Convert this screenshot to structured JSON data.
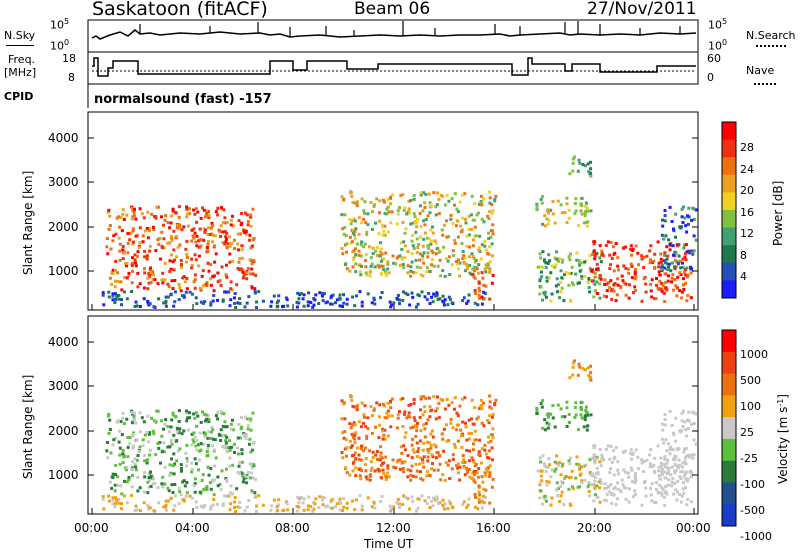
{
  "header": {
    "station": "Saskatoon (fitACF)",
    "beam": "Beam 06",
    "date": "27/Nov/2011"
  },
  "nsky_panel": {
    "left_label": "N.Sky",
    "left_ticks": [
      "10^5",
      "10^0"
    ],
    "right_ticks": [
      "10^5",
      "10^0"
    ],
    "right_label": "N.Search"
  },
  "freq_panel": {
    "left_label_top": "Freq.",
    "left_label_bottom": "[MHz]",
    "left_ticks": [
      "18",
      "8"
    ],
    "right_ticks": [
      "60",
      "0"
    ],
    "right_label": "Nave"
  },
  "cpid_panel": {
    "label": "CPID",
    "value": "normalsound (fast) -157"
  },
  "chart_data": [
    {
      "type": "heatmap",
      "name": "power",
      "ylabel": "Slant Range [km]",
      "yticks": [
        "1000",
        "2000",
        "3000",
        "4000"
      ],
      "ylim": [
        200,
        4500
      ],
      "colorbar_label": "Power [dB]",
      "colorbar_ticks": [
        "4",
        "8",
        "12",
        "16",
        "20",
        "24",
        "28"
      ],
      "colorbar_colors": [
        "#1c1cff",
        "#2050b8",
        "#207850",
        "#40a070",
        "#80c040",
        "#f0d020",
        "#f0a020",
        "#f07010",
        "#f03010",
        "#ff0000"
      ]
    },
    {
      "type": "heatmap",
      "name": "velocity",
      "ylabel": "Slant Range [km]",
      "yticks": [
        "1000",
        "2000",
        "3000",
        "4000"
      ],
      "ylim": [
        200,
        4500
      ],
      "colorbar_label": "Velocity [m s^-1]",
      "colorbar_ticks": [
        "1000",
        "500",
        "100",
        "25",
        "-25",
        "-100",
        "-500",
        "-1000"
      ],
      "colorbar_colors": [
        "#1a3cc8",
        "#205090",
        "#2a7a3a",
        "#5cc03c",
        "#c8c8c8",
        "#f0a010",
        "#f07010",
        "#f04010",
        "#ff0000"
      ]
    }
  ],
  "xaxis": {
    "ticks": [
      "00:00",
      "04:00",
      "08:00",
      "12:00",
      "16:00",
      "20:00",
      "00:00"
    ],
    "label": "Time UT"
  }
}
